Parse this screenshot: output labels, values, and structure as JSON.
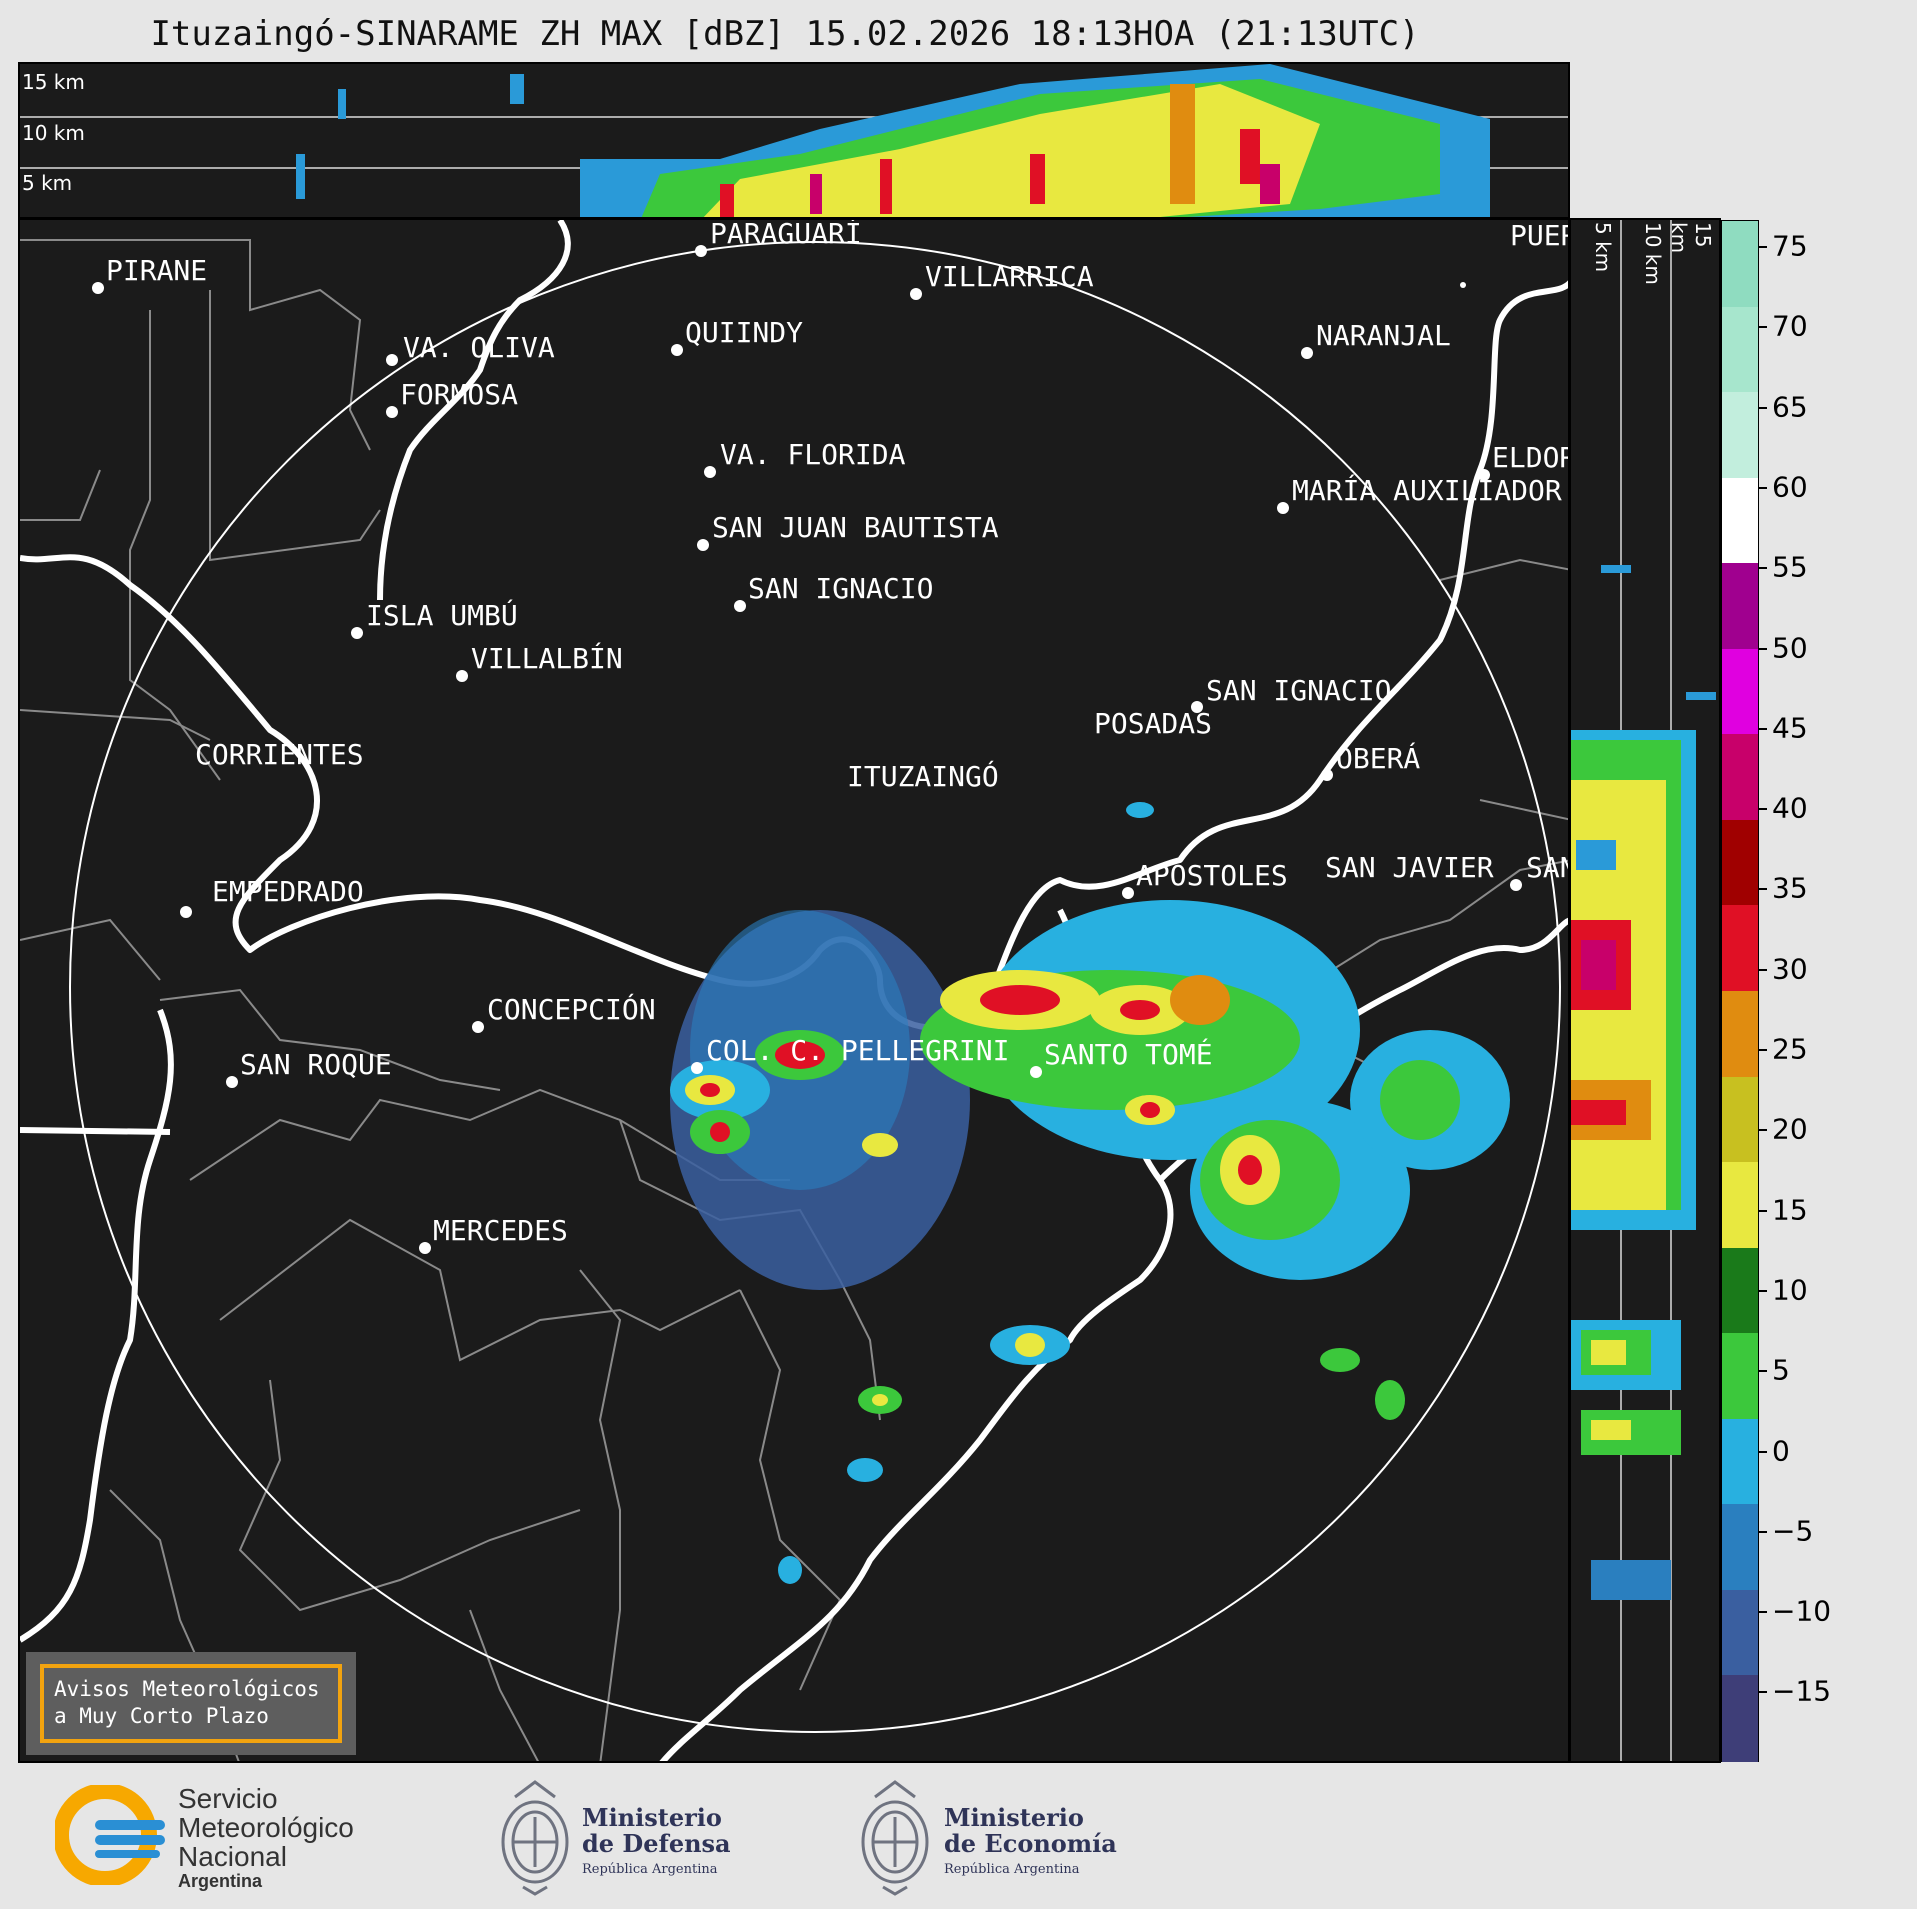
{
  "title": "Ituzaingó-SINARAME ZH MAX [dBZ] 15.02.2026 18:13HOA (21:13UTC)",
  "top_panel_heights": [
    "15 km",
    "10 km",
    "5 km"
  ],
  "side_panel_heights": [
    "5 km",
    "10 km",
    "15 km"
  ],
  "cities": [
    {
      "name": "PIRANE"
    },
    {
      "name": "PARAGUARÍ"
    },
    {
      "name": "VILLARRICA"
    },
    {
      "name": "PUER"
    },
    {
      "name": "QUIINDY"
    },
    {
      "name": "VA. OLIVA"
    },
    {
      "name": "NARANJAL"
    },
    {
      "name": "FORMOSA"
    },
    {
      "name": "VA. FLORIDA"
    },
    {
      "name": "ELDOR"
    },
    {
      "name": "MARÍA AUXILIADOR"
    },
    {
      "name": "SAN JUAN BAUTISTA"
    },
    {
      "name": "SAN IGNACIO"
    },
    {
      "name": "ISLA UMBÚ"
    },
    {
      "name": "VILLALBÍN"
    },
    {
      "name": "SAN IGNACIO"
    },
    {
      "name": "POSADAS"
    },
    {
      "name": "CORRIENTES"
    },
    {
      "name": "ITUZAINGÓ"
    },
    {
      "name": "OBERÁ"
    },
    {
      "name": "EMPEDRADO"
    },
    {
      "name": "APÓSTOLES"
    },
    {
      "name": "SAN JAVIER"
    },
    {
      "name": "SAN"
    },
    {
      "name": "CONCEPCIÓN"
    },
    {
      "name": "COL. C. PELLEGRINI"
    },
    {
      "name": "SANTO TOMÉ"
    },
    {
      "name": "SAN ROQUE"
    },
    {
      "name": "MERCEDES"
    }
  ],
  "colorbar": {
    "ticks": [
      "75",
      "70",
      "65",
      "60",
      "55",
      "50",
      "45",
      "40",
      "35",
      "30",
      "25",
      "20",
      "15",
      "10",
      "5",
      "0",
      "−5",
      "−10",
      "−15"
    ],
    "colors": [
      "#8fdcc0",
      "#a7e6cd",
      "#c2eedd",
      "#ffffff",
      "#a0008f",
      "#e000e0",
      "#c8006a",
      "#a00000",
      "#e01025",
      "#e08c10",
      "#c8c020",
      "#e8e840",
      "#1a7a1a",
      "#3cc83c",
      "#28b0e0",
      "#2a7fbf",
      "#3a5fa0",
      "#3e3e78"
    ]
  },
  "avisos": {
    "line1": "Avisos Meteorológicos",
    "line2": "a Muy Corto Plazo"
  },
  "logos": {
    "smn": {
      "line1": "Servicio",
      "line2": "Meteorológico",
      "line3": "Nacional",
      "line4": "Argentina"
    },
    "defensa": {
      "line1": "Ministerio",
      "line2": "de Defensa",
      "line3": "República Argentina"
    },
    "economia": {
      "line1": "Ministerio",
      "line2": "de Economía",
      "line3": "República Argentina"
    }
  }
}
